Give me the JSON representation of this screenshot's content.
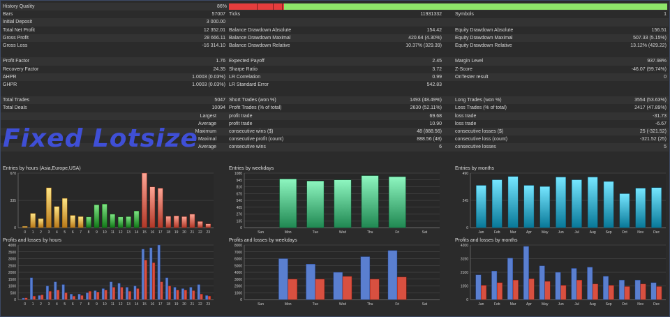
{
  "stats": {
    "history_quality": {
      "label": "History Quality",
      "value": "86%",
      "quality_fraction": 0.86
    },
    "rows": [
      [
        [
          "Bars",
          "57007"
        ],
        [
          "Ticks",
          "11931332"
        ],
        [
          "Symbols",
          "1"
        ]
      ],
      [
        [
          "Initial Deposit",
          "3 000.00"
        ],
        [
          "",
          ""
        ],
        [
          "",
          ""
        ]
      ],
      [
        [
          "Total Net Profit",
          "12 352.01"
        ],
        [
          "Balance Drawdown Absolute",
          "154.42"
        ],
        [
          "Equity Drawdown Absolute",
          "156.51"
        ]
      ],
      [
        [
          "Gross Profit",
          "28 666.11"
        ],
        [
          "Balance Drawdown Maximal",
          "420.64 (4.30%)"
        ],
        [
          "Equity Drawdown Maximal",
          "507.33 (5.15%)"
        ]
      ],
      [
        [
          "Gross Loss",
          "-16 314.10"
        ],
        [
          "Balance Drawdown Relative",
          "10.37% (329.39)"
        ],
        [
          "Equity Drawdown Relative",
          "13.12% (429.22)"
        ]
      ],
      null,
      [
        [
          "Profit Factor",
          "1.76"
        ],
        [
          "Expected Payoff",
          "2.45"
        ],
        [
          "Margin Level",
          "937.98%"
        ]
      ],
      [
        [
          "Recovery Factor",
          "24.35"
        ],
        [
          "Sharpe Ratio",
          "3.72"
        ],
        [
          "Z-Score",
          "-46.07 (99.74%)"
        ]
      ],
      [
        [
          "AHPR",
          "1.0003 (0.03%)"
        ],
        [
          "LR Correlation",
          "0.99"
        ],
        [
          "OnTester result",
          "0"
        ]
      ],
      [
        [
          "GHPR",
          "1.0003 (0.03%)"
        ],
        [
          "LR Standard Error",
          "542.83"
        ],
        [
          "",
          ""
        ]
      ],
      null,
      [
        [
          "Total Trades",
          "5047"
        ],
        [
          "Short Trades (won %)",
          "1493 (48.49%)"
        ],
        [
          "Long Trades (won %)",
          "3554 (53.63%)"
        ]
      ],
      [
        [
          "Total Deals",
          "10094"
        ],
        [
          "Profit Trades (% of total)",
          "2630 (52.11%)"
        ],
        [
          "Loss Trades (% of total)",
          "2417 (47.89%)"
        ]
      ],
      [
        [
          "",
          "Largest"
        ],
        [
          "profit trade",
          "69.68"
        ],
        [
          "loss trade",
          "-31.73"
        ]
      ],
      [
        [
          "",
          "Average"
        ],
        [
          "profit trade",
          "10.90"
        ],
        [
          "loss trade",
          "-6.67"
        ]
      ],
      [
        [
          "",
          "Maximum"
        ],
        [
          "consecutive wins ($)",
          "48 (888.56)"
        ],
        [
          "consecutive losses ($)",
          "25 (-321.52)"
        ]
      ],
      [
        [
          "",
          "Maximal"
        ],
        [
          "consecutive profit (count)",
          "888.56 (48)"
        ],
        [
          "consecutive loss (count)",
          "-321.52 (25)"
        ]
      ],
      [
        [
          "",
          "Average"
        ],
        [
          "consecutive wins",
          "6"
        ],
        [
          "consecutive losses",
          "5"
        ]
      ]
    ]
  },
  "overlay": {
    "text": "Fixed Lotsize"
  },
  "chart_data": [
    {
      "id": "entries-hours",
      "type": "bar",
      "title": "Entries by hours (Asia,Europe,USA)",
      "categories": [
        "0",
        "1",
        "2",
        "3",
        "4",
        "5",
        "6",
        "7",
        "8",
        "9",
        "10",
        "11",
        "12",
        "13",
        "14",
        "15",
        "16",
        "17",
        "18",
        "19",
        "20",
        "21",
        "22",
        "23"
      ],
      "values": [
        15,
        175,
        110,
        490,
        260,
        360,
        150,
        135,
        130,
        280,
        290,
        165,
        130,
        135,
        205,
        670,
        500,
        485,
        140,
        145,
        135,
        165,
        75,
        45
      ],
      "ylim": [
        0,
        670
      ],
      "yticks": [
        0,
        335,
        670
      ],
      "colors": {
        "0-7": "#e0a040",
        "8-14": "#3aa040",
        "15-23": "#d86050"
      }
    },
    {
      "id": "entries-weekdays",
      "type": "bar",
      "title": "Entries by weekdays",
      "categories": [
        "Sun",
        "Mon",
        "Tue",
        "Wed",
        "Thu",
        "Fri",
        "Sat"
      ],
      "values": [
        0,
        965,
        925,
        945,
        1030,
        1010,
        0
      ],
      "ylim": [
        0,
        1080
      ],
      "yticks": [
        0,
        135,
        270,
        405,
        540,
        675,
        810,
        945,
        1080
      ],
      "color": "#48b07a"
    },
    {
      "id": "entries-months",
      "type": "bar",
      "title": "Entries by months",
      "categories": [
        "Jan",
        "Feb",
        "Mar",
        "Apr",
        "May",
        "Jun",
        "Jul",
        "Aug",
        "Sep",
        "Oct",
        "Nov",
        "Dec"
      ],
      "values": [
        380,
        430,
        460,
        380,
        370,
        455,
        430,
        455,
        415,
        305,
        355,
        360
      ],
      "ylim": [
        0,
        490
      ],
      "yticks": [
        0,
        245,
        490
      ],
      "color": "#30a0c0"
    },
    {
      "id": "pl-hours",
      "type": "bar",
      "title": "Profits and losses by hours",
      "categories": [
        "0",
        "1",
        "2",
        "3",
        "4",
        "5",
        "6",
        "7",
        "8",
        "9",
        "10",
        "11",
        "12",
        "13",
        "14",
        "15",
        "16",
        "17",
        "18",
        "19",
        "20",
        "21",
        "22",
        "23"
      ],
      "series": [
        {
          "name": "profits",
          "values": [
            100,
            1600,
            300,
            1000,
            1300,
            1100,
            400,
            400,
            500,
            650,
            800,
            1300,
            1200,
            900,
            1000,
            3700,
            3800,
            4000,
            1600,
            900,
            800,
            900,
            1100,
            300
          ],
          "color": "#5a7fd0"
        },
        {
          "name": "losses",
          "values": [
            120,
            250,
            350,
            600,
            700,
            500,
            250,
            300,
            600,
            550,
            700,
            900,
            900,
            600,
            800,
            2900,
            2700,
            1300,
            1000,
            700,
            700,
            650,
            400,
            250
          ],
          "color": "#d85040"
        }
      ],
      "ylim": [
        0,
        4000
      ],
      "yticks": [
        0,
        500,
        1000,
        1500,
        2000,
        2500,
        3000,
        3500,
        4000
      ]
    },
    {
      "id": "pl-weekdays",
      "type": "bar",
      "title": "Profits and losses by weekdays",
      "categories": [
        "Sun",
        "Mon",
        "Tue",
        "Wed",
        "Thu",
        "Fri",
        "Sat"
      ],
      "series": [
        {
          "name": "profits",
          "values": [
            0,
            6000,
            5200,
            4000,
            6300,
            7200,
            0
          ],
          "color": "#5a7fd0"
        },
        {
          "name": "losses",
          "values": [
            0,
            3000,
            3000,
            3400,
            3000,
            3300,
            0
          ],
          "color": "#d85040"
        }
      ],
      "ylim": [
        0,
        8000
      ],
      "yticks": [
        0,
        1000,
        2000,
        3000,
        4000,
        5000,
        6000,
        7000,
        8000
      ]
    },
    {
      "id": "pl-months",
      "type": "bar",
      "title": "Profits and losses by months",
      "categories": [
        "Jan",
        "Feb",
        "Mar",
        "Apr",
        "May",
        "Jun",
        "Jul",
        "Aug",
        "Sep",
        "Oct",
        "Nov",
        "Dec"
      ],
      "series": [
        {
          "name": "profits",
          "values": [
            1900,
            2200,
            3200,
            4100,
            2600,
            2100,
            2400,
            2500,
            1800,
            1500,
            1500,
            1300
          ],
          "color": "#5a7fd0"
        },
        {
          "name": "losses",
          "values": [
            1100,
            1300,
            1500,
            1600,
            1400,
            1100,
            1500,
            1200,
            1100,
            1000,
            1200,
            1000
          ],
          "color": "#d85040"
        }
      ],
      "ylim": [
        0,
        4200
      ],
      "yticks": [
        0,
        1050,
        2100,
        3150,
        4200
      ]
    }
  ]
}
